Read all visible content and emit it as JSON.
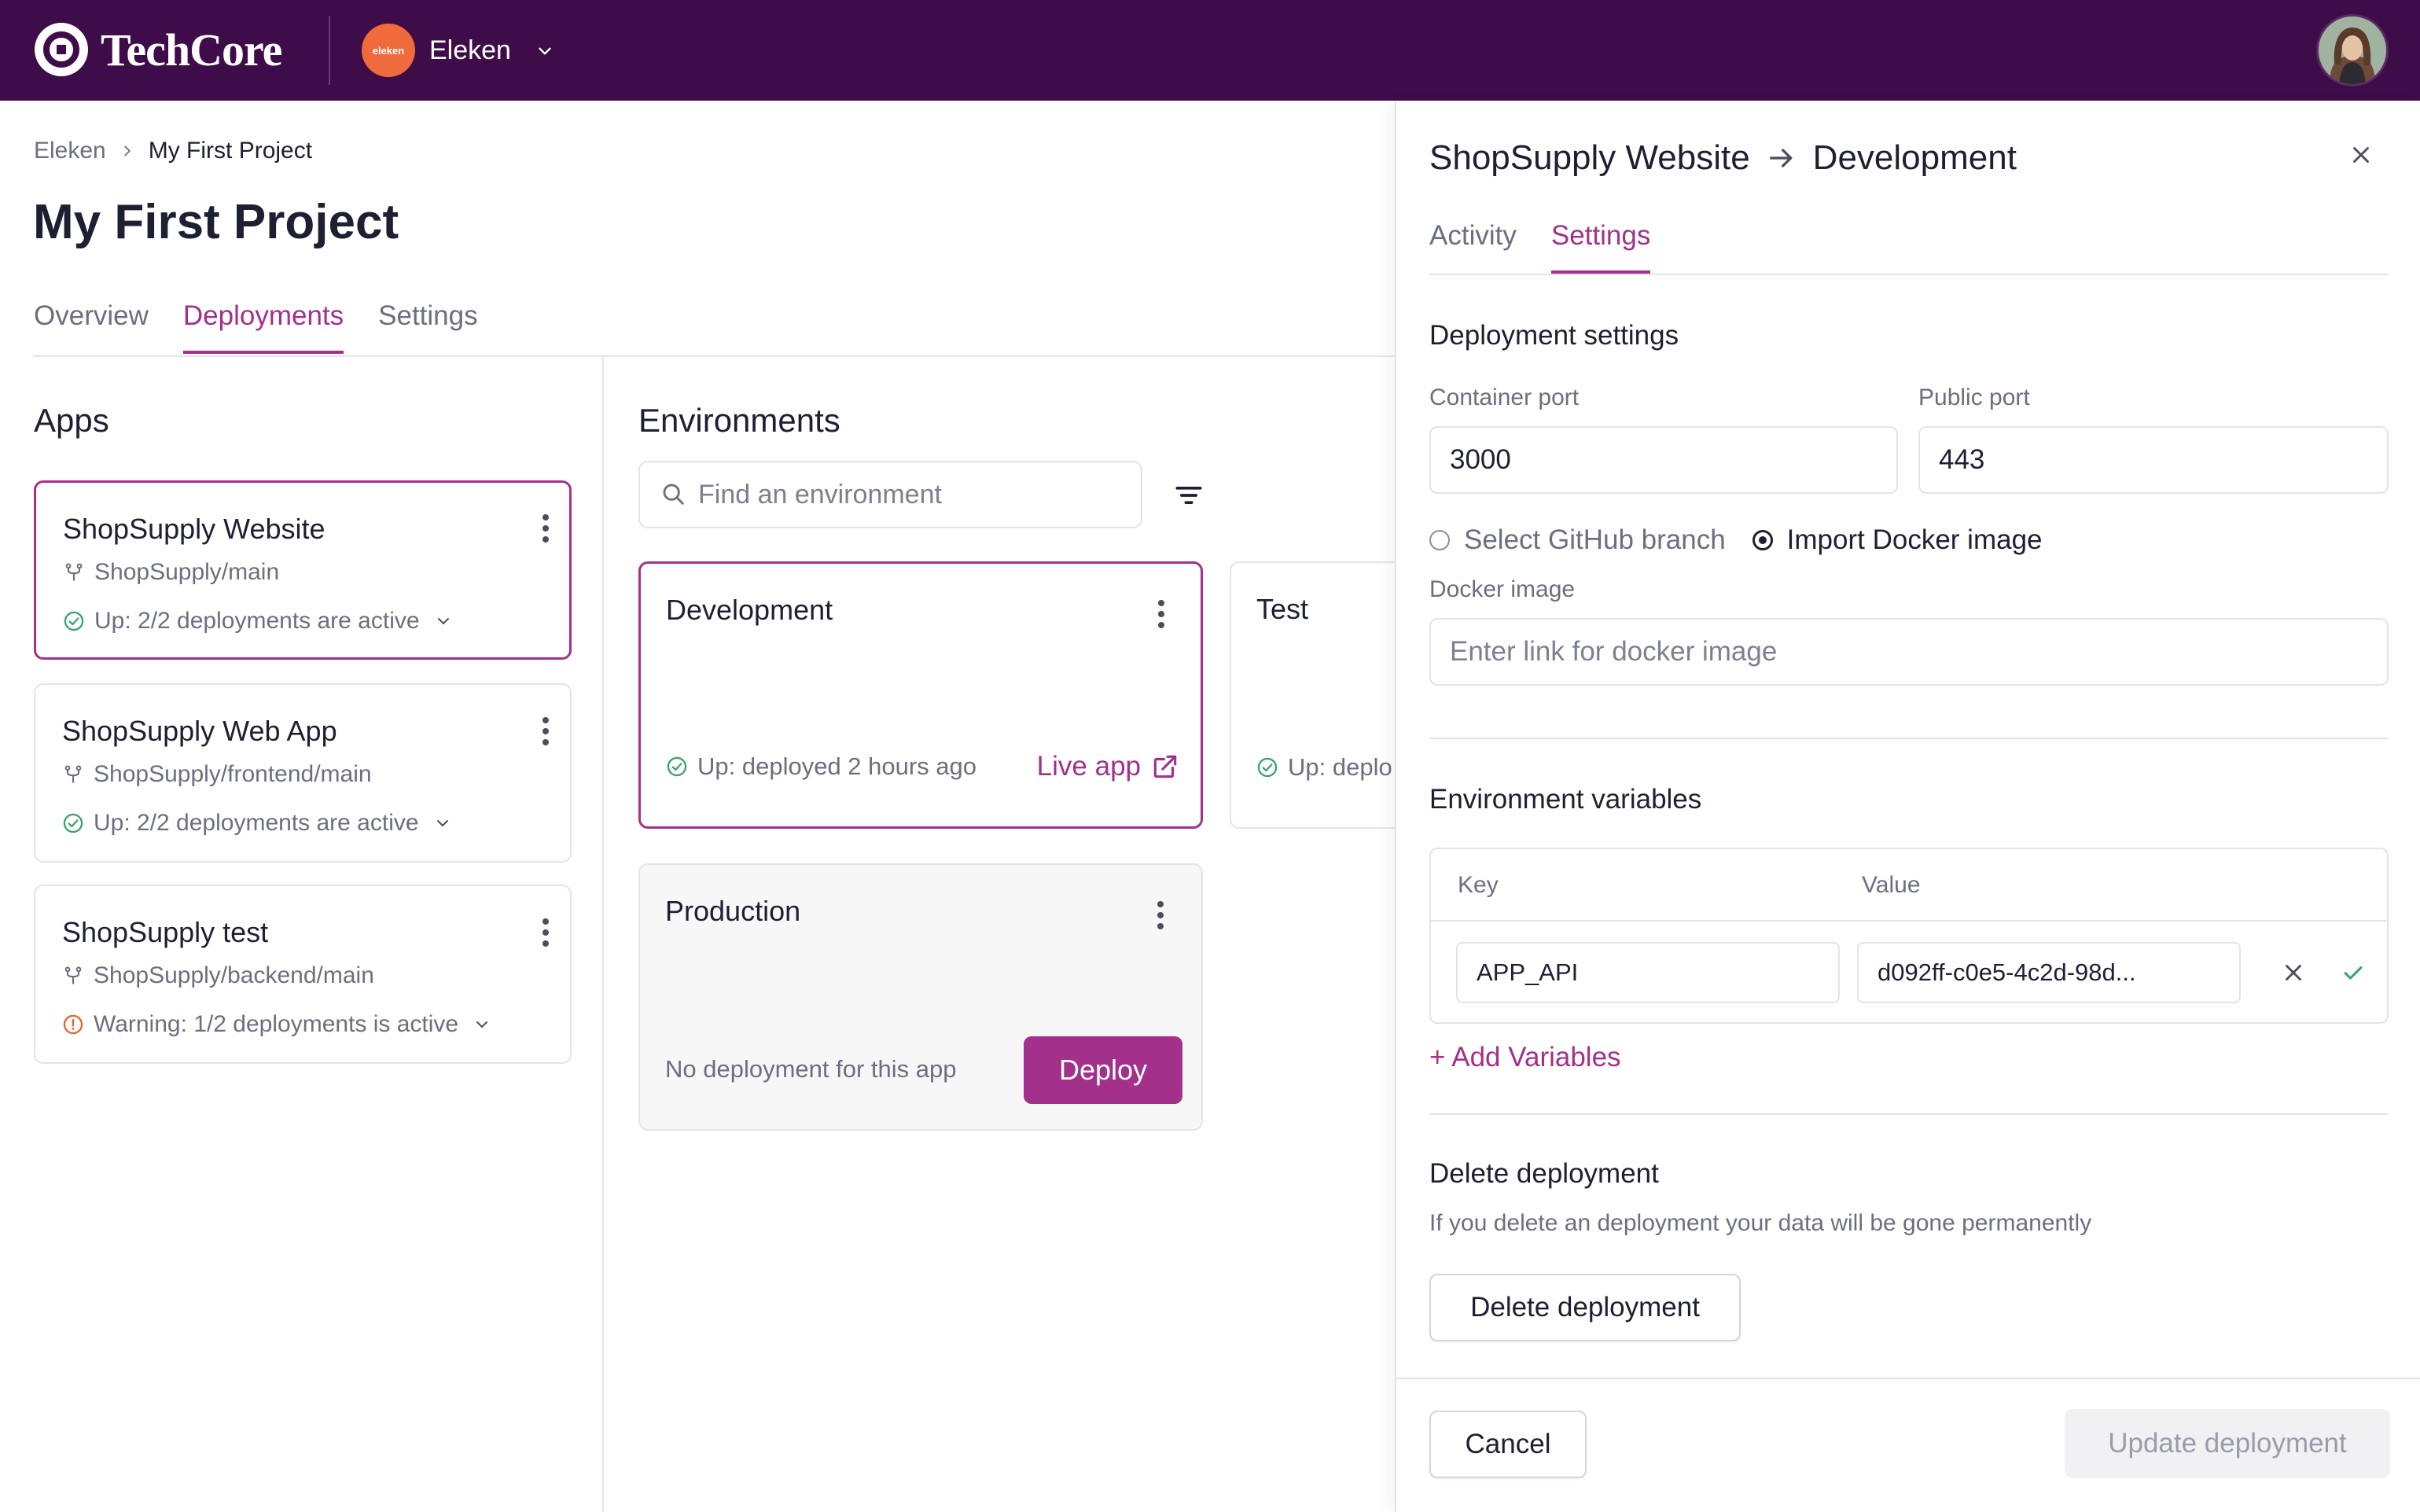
{
  "topbar": {
    "brand": "TechCore",
    "workspace": {
      "badge": "eleken",
      "name": "Eleken"
    },
    "icons": [
      "techcore-logo-icon",
      "chevron-down-icon",
      "user-avatar"
    ]
  },
  "breadcrumb": {
    "parent": "Eleken",
    "current": "My First Project"
  },
  "page_title": "My First Project",
  "main_tabs": [
    {
      "label": "Overview",
      "active": false
    },
    {
      "label": "Deployments",
      "active": true
    },
    {
      "label": "Settings",
      "active": false
    }
  ],
  "apps": {
    "heading": "Apps",
    "items": [
      {
        "name": "ShopSupply Website",
        "repo": "ShopSupply/main",
        "status": "Up: 2/2 deployments are active",
        "status_type": "ok",
        "selected": true
      },
      {
        "name": "ShopSupply Web App",
        "repo": "ShopSupply/frontend/main",
        "status": "Up: 2/2 deployments are active",
        "status_type": "ok",
        "selected": false
      },
      {
        "name": "ShopSupply test",
        "repo": "ShopSupply/backend/main",
        "status": "Warning: 1/2 deployments is active",
        "status_type": "warning",
        "selected": false
      }
    ]
  },
  "environments": {
    "heading": "Environments",
    "search_placeholder": "Find an environment",
    "cards": [
      {
        "name": "Development",
        "status": "Up: deployed 2 hours ago",
        "link": "Live app",
        "selected": true
      },
      {
        "name": "Test",
        "status": "Up: deplo"
      },
      {
        "name": "Production",
        "status": "No deployment for this app",
        "button": "Deploy"
      }
    ]
  },
  "panel": {
    "title_app": "ShopSupply Website",
    "title_env": "Development",
    "tabs": [
      {
        "label": "Activity",
        "active": false
      },
      {
        "label": "Settings",
        "active": true
      }
    ],
    "deployment_settings": {
      "heading": "Deployment settings",
      "container_port_label": "Container port",
      "container_port": "3000",
      "public_port_label": "Public port",
      "public_port": "443",
      "radio_github": "Select GitHub branch",
      "radio_docker": "Import Docker image",
      "docker_label": "Docker image",
      "docker_placeholder": "Enter link for docker image"
    },
    "env_vars": {
      "heading": "Environment variables",
      "key_header": "Key",
      "value_header": "Value",
      "rows": [
        {
          "key": "APP_API",
          "value": "d092ff-c0e5-4c2d-98d..."
        }
      ],
      "add_label": "+ Add Variables"
    },
    "delete": {
      "heading": "Delete deployment",
      "description": "If you delete an deployment your data will be gone permanently",
      "button": "Delete deployment"
    },
    "footer": {
      "cancel": "Cancel",
      "update": "Update deployment"
    }
  },
  "colors": {
    "topbar": "#3f0c4a",
    "accent": "#a3308a",
    "success": "#3aa56b",
    "warning": "#e0672f"
  }
}
